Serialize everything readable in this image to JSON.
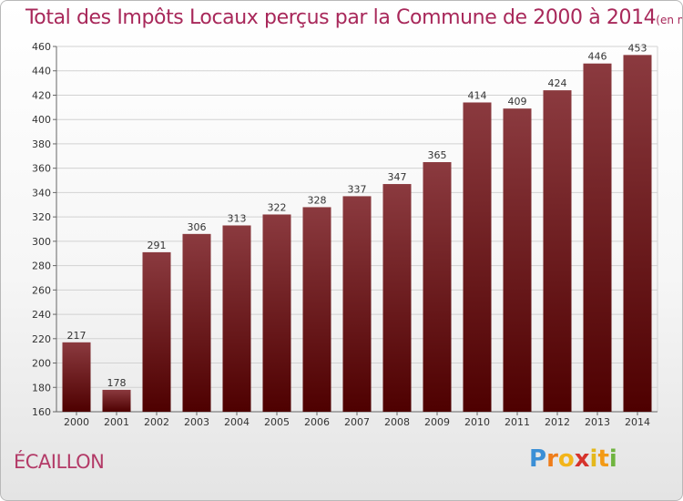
{
  "header": {
    "title": "Total des Impôts Locaux perçus par la Commune de 2000 à 2014",
    "unit": "(en milliers d'€)"
  },
  "footer": {
    "commune": "ÉCAILLON",
    "logo_letters": [
      "P",
      "r",
      "o",
      "x",
      "i",
      "t",
      "i"
    ],
    "logo_colors": [
      "#3b8fd6",
      "#ef7d1a",
      "#f3b51a",
      "#d6332c",
      "#e4b81c",
      "#f39a16",
      "#6fb43f"
    ]
  },
  "chart_data": {
    "type": "bar",
    "categories": [
      "2000",
      "2001",
      "2002",
      "2003",
      "2004",
      "2005",
      "2006",
      "2007",
      "2008",
      "2009",
      "2010",
      "2011",
      "2012",
      "2013",
      "2014"
    ],
    "values": [
      217,
      178,
      291,
      306,
      313,
      322,
      328,
      337,
      347,
      365,
      414,
      409,
      424,
      446,
      453
    ],
    "ylim": [
      160,
      460
    ],
    "yticks": [
      160,
      180,
      200,
      220,
      240,
      260,
      280,
      300,
      320,
      340,
      360,
      380,
      400,
      420,
      440,
      460
    ],
    "grid": true,
    "bar_color_top": "#8b3a3f",
    "bar_color_bottom": "#4e0000"
  }
}
